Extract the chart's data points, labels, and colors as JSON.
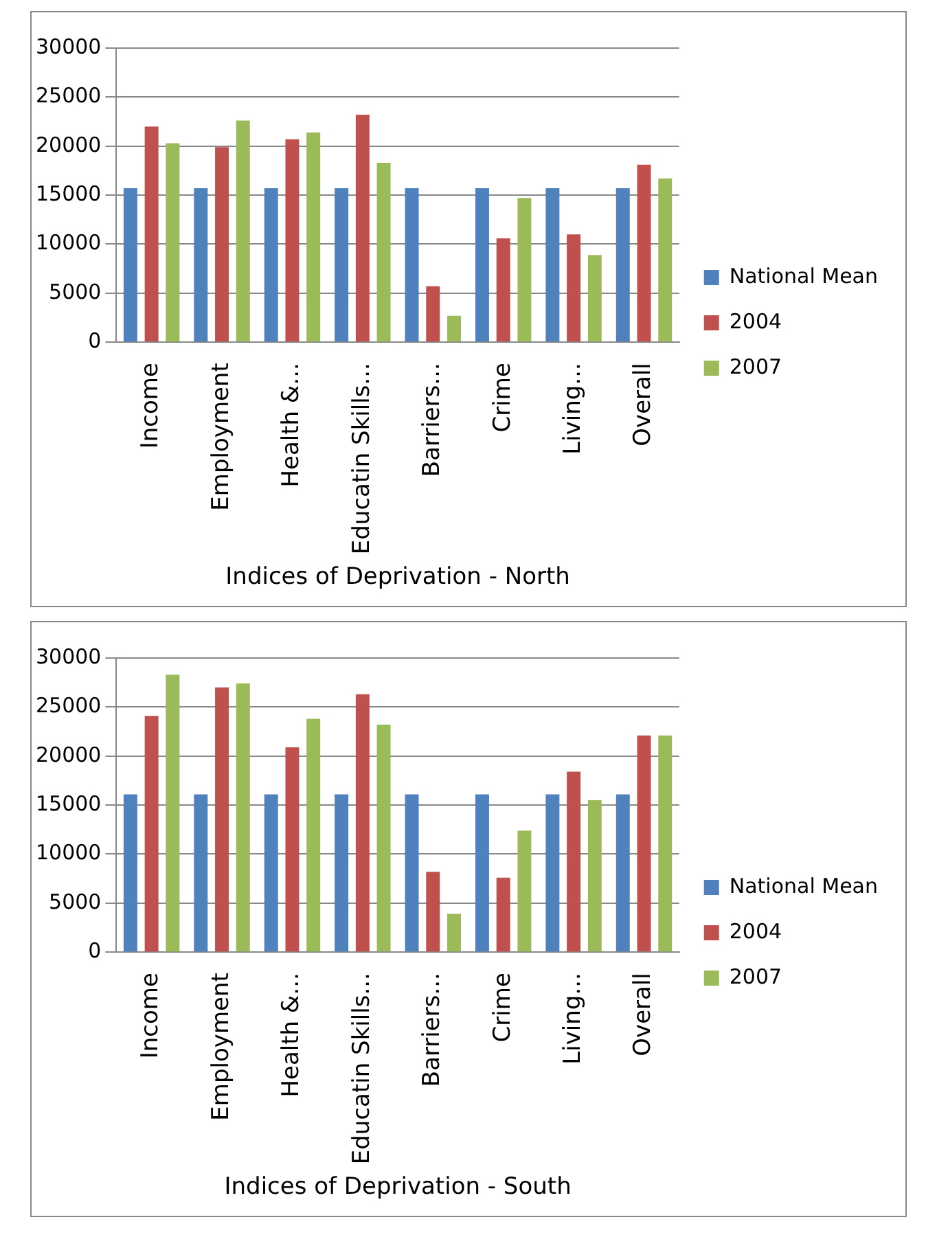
{
  "chart_data": [
    {
      "type": "bar",
      "xlabel": "Indices of Deprivation - North",
      "categories": [
        "Income",
        "Employment",
        "Health &...",
        "Educatin Skills...",
        "Barriers...",
        "Crime",
        "Living...",
        "Overall"
      ],
      "series": [
        {
          "name": "National Mean",
          "color": "#4f81bd",
          "values": [
            15700,
            15700,
            15700,
            15700,
            15700,
            15700,
            15700,
            15700
          ]
        },
        {
          "name": "2004",
          "color": "#c0504d",
          "values": [
            22000,
            19900,
            20700,
            23200,
            5700,
            10600,
            11000,
            18100
          ]
        },
        {
          "name": "2007",
          "color": "#9bbb59",
          "values": [
            20300,
            22600,
            21400,
            18300,
            2700,
            14700,
            8900,
            16700
          ]
        }
      ],
      "ylim": [
        0,
        30000
      ],
      "yticks": [
        0,
        5000,
        10000,
        15000,
        20000,
        25000,
        30000
      ],
      "grid": "y",
      "legend": "right"
    },
    {
      "type": "bar",
      "xlabel": "Indices of Deprivation - South",
      "categories": [
        "Income",
        "Employment",
        "Health &...",
        "Educatin Skills...",
        "Barriers...",
        "Crime",
        "Living...",
        "Overall"
      ],
      "series": [
        {
          "name": "National Mean",
          "color": "#4f81bd",
          "values": [
            16100,
            16100,
            16100,
            16100,
            16100,
            16100,
            16100,
            16100
          ]
        },
        {
          "name": "2004",
          "color": "#c0504d",
          "values": [
            24100,
            27000,
            20900,
            26300,
            8200,
            7600,
            18400,
            22100
          ]
        },
        {
          "name": "2007",
          "color": "#9bbb59",
          "values": [
            28300,
            27400,
            23800,
            23200,
            3900,
            12400,
            15500,
            22100
          ]
        }
      ],
      "ylim": [
        0,
        30000
      ],
      "yticks": [
        0,
        5000,
        10000,
        15000,
        20000,
        25000,
        30000
      ],
      "grid": "y",
      "legend": "right"
    }
  ]
}
